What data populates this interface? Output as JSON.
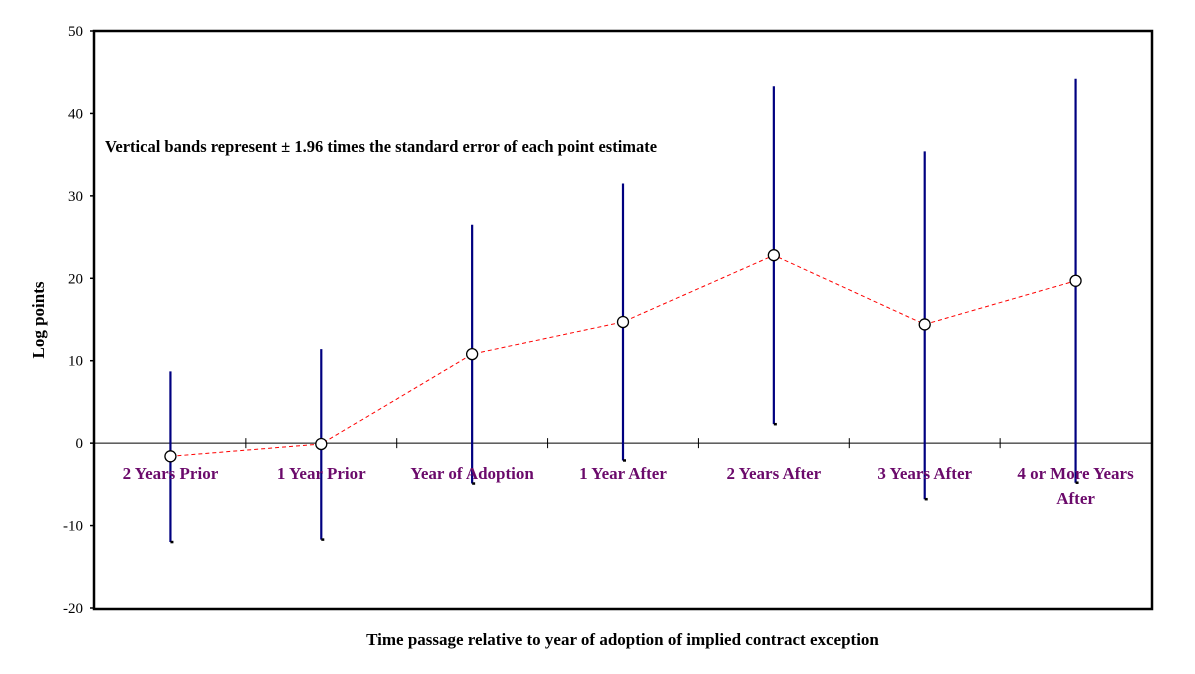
{
  "chart_data": {
    "type": "line",
    "annotation": "Vertical bands represent ± 1.96 times the standard error of each point estimate",
    "xlabel": "Time passage relative to year of adoption of implied contract exception",
    "ylabel": "Log points",
    "ylim": [
      -20,
      50
    ],
    "yticks": [
      -20,
      -10,
      0,
      10,
      20,
      30,
      40,
      50
    ],
    "ytick_labels": [
      "-20",
      "-10",
      "0",
      "10",
      "20",
      "30",
      "40",
      "50"
    ],
    "grid": false,
    "categories": [
      [
        "2 Years Prior"
      ],
      [
        "1 Year Prior"
      ],
      [
        "Year of Adoption"
      ],
      [
        "1 Year After"
      ],
      [
        "2 Years After"
      ],
      [
        "3 Years After"
      ],
      [
        "4 or More Years",
        "After"
      ]
    ],
    "series": [
      {
        "values": [
          -1.6,
          -0.1,
          10.8,
          14.7,
          22.8,
          14.4,
          19.7
        ],
        "lower": [
          -12.0,
          -11.7,
          -4.9,
          -2.1,
          2.3,
          -6.8,
          -4.8
        ],
        "upper": [
          8.7,
          11.4,
          26.5,
          31.5,
          43.3,
          35.4,
          44.2
        ]
      }
    ],
    "colors": {
      "line": "#ff0000",
      "error_bar": "#000080",
      "category_label": "#6b0a6b",
      "marker_fill": "#ffffff",
      "marker_stroke": "#000000"
    }
  }
}
